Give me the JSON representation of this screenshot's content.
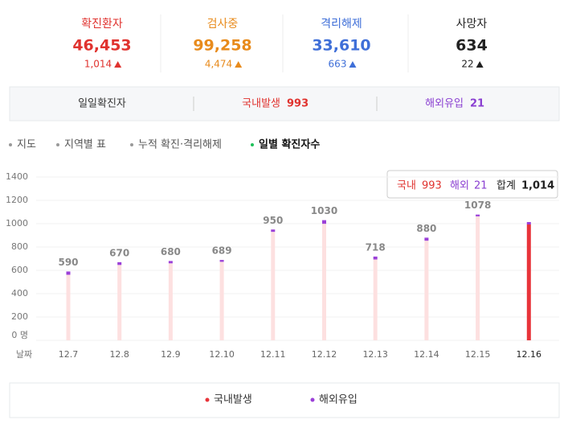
{
  "summary": [
    {
      "label": "확진환자",
      "value": "46,453",
      "delta": "1,014",
      "color": "#e0332f"
    },
    {
      "label": "검사중",
      "value": "99,258",
      "delta": "4,474",
      "color": "#e88b1c"
    },
    {
      "label": "격리해제",
      "value": "33,610",
      "delta": "663",
      "color": "#3f6fd8"
    },
    {
      "label": "사망자",
      "value": "634",
      "delta": "22",
      "color": "#222222"
    }
  ],
  "filter": {
    "title": "일일확진자",
    "items": [
      {
        "label": "국내발생",
        "value": "993",
        "color": "#e0332f"
      },
      {
        "label": "해외유입",
        "value": "21",
        "color": "#8a3fd1"
      }
    ]
  },
  "tabs": [
    "지도",
    "지역별 표",
    "누적 확진·격리해제",
    "일별 확진자수"
  ],
  "chart_data": {
    "type": "bar",
    "stacked": true,
    "x_label": "날짜",
    "categories": [
      "12.7",
      "12.8",
      "12.9",
      "12.10",
      "12.11",
      "12.12",
      "12.13",
      "12.14",
      "12.15",
      "12.16"
    ],
    "series": [
      {
        "name": "국내발생",
        "color": "#e8343a",
        "inactive_color": "#fde0e0",
        "values": [
          562,
          646,
          660,
          673,
          930,
          999,
          693,
          854,
          1063,
          993
        ]
      },
      {
        "name": "해외유입",
        "color": "#9b40d8",
        "values": [
          28,
          24,
          20,
          16,
          20,
          31,
          25,
          26,
          15,
          21
        ]
      }
    ],
    "totals": [
      590,
      670,
      680,
      689,
      950,
      1030,
      718,
      880,
      1078,
      null
    ],
    "highlight_index": 9,
    "ylim": [
      0,
      1400
    ],
    "yticks": [
      {
        "value": 0,
        "label": "0 명"
      },
      200,
      400,
      600,
      800,
      1000,
      1200,
      1400
    ],
    "grid": true,
    "tooltip": {
      "domestic_label": "국내",
      "domestic": "993",
      "overseas_label": "해외",
      "overseas": "21",
      "total_label": "합계",
      "total": "1,014"
    }
  }
}
